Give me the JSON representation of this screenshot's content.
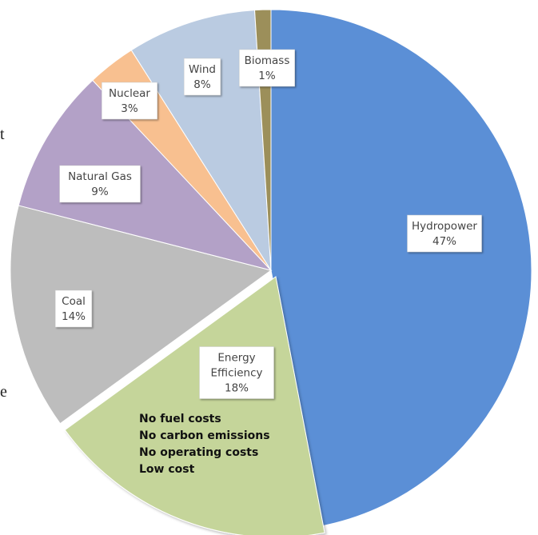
{
  "page": {
    "left_fragment_top": "t",
    "left_fragment_bottom": "e"
  },
  "chart_data": {
    "type": "pie",
    "title": "",
    "slices": [
      {
        "label": "Hydropower",
        "value": 47,
        "value_label": "47%",
        "label_lines": [
          "Hydropower"
        ],
        "color": "#5B8FD6"
      },
      {
        "label": "Energy Efficiency",
        "value": 18,
        "value_label": "18%",
        "label_lines": [
          "Energy",
          "Efficiency"
        ],
        "color": "#C5D59A"
      },
      {
        "label": "Coal",
        "value": 14,
        "value_label": "14%",
        "label_lines": [
          "Coal"
        ],
        "color": "#BDBDBD"
      },
      {
        "label": "Natural Gas",
        "value": 9,
        "value_label": "9%",
        "label_lines": [
          "Natural Gas"
        ],
        "color": "#B3A1C7"
      },
      {
        "label": "Nuclear",
        "value": 3,
        "value_label": "3%",
        "label_lines": [
          "Nuclear"
        ],
        "color": "#F8C090"
      },
      {
        "label": "Wind",
        "value": 8,
        "value_label": "8%",
        "label_lines": [
          "Wind"
        ],
        "color": "#BACBE1"
      },
      {
        "label": "Biomass",
        "value": 1,
        "value_label": "1%",
        "label_lines": [
          "Biomass"
        ],
        "color": "#9C8F5A"
      }
    ],
    "callout": {
      "lines": [
        "No fuel costs",
        "No carbon emissions",
        "No operating costs",
        "Low cost"
      ]
    },
    "legend": "none"
  }
}
